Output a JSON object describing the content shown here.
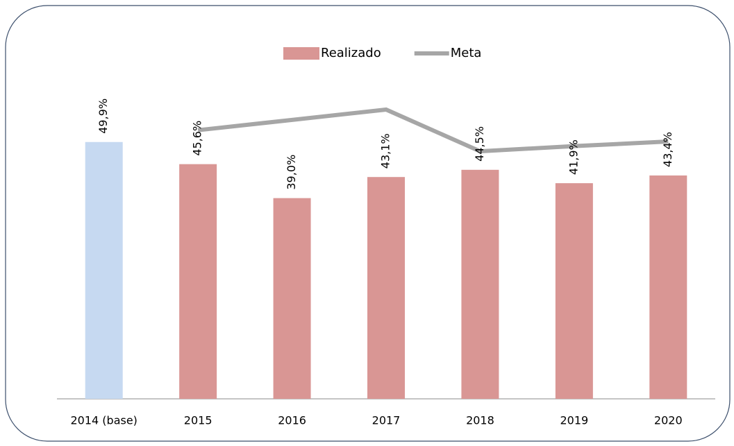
{
  "chart_data": {
    "type": "bar_line",
    "categories": [
      "2014 (base)",
      "2015",
      "2016",
      "2017",
      "2018",
      "2019",
      "2020"
    ],
    "series": [
      {
        "name": "Realizado",
        "type": "bar",
        "color": "#d99694",
        "colors": [
          "#c6d9f1",
          "#d99694",
          "#d99694",
          "#d99694",
          "#d99694",
          "#d99694",
          "#d99694"
        ],
        "values": [
          49.9,
          45.6,
          39.0,
          43.1,
          44.5,
          41.9,
          43.4
        ],
        "value_labels": [
          "49,9%",
          "45,6%",
          "39,0%",
          "43,1%",
          "44,5%",
          "41,9%",
          "43,4%"
        ]
      },
      {
        "name": "Meta",
        "type": "line",
        "color": "#a6a6a6",
        "values": [
          null,
          52.2,
          54.2,
          56.2,
          48.1,
          49.1,
          50.0
        ]
      }
    ],
    "legend": "top"
  }
}
